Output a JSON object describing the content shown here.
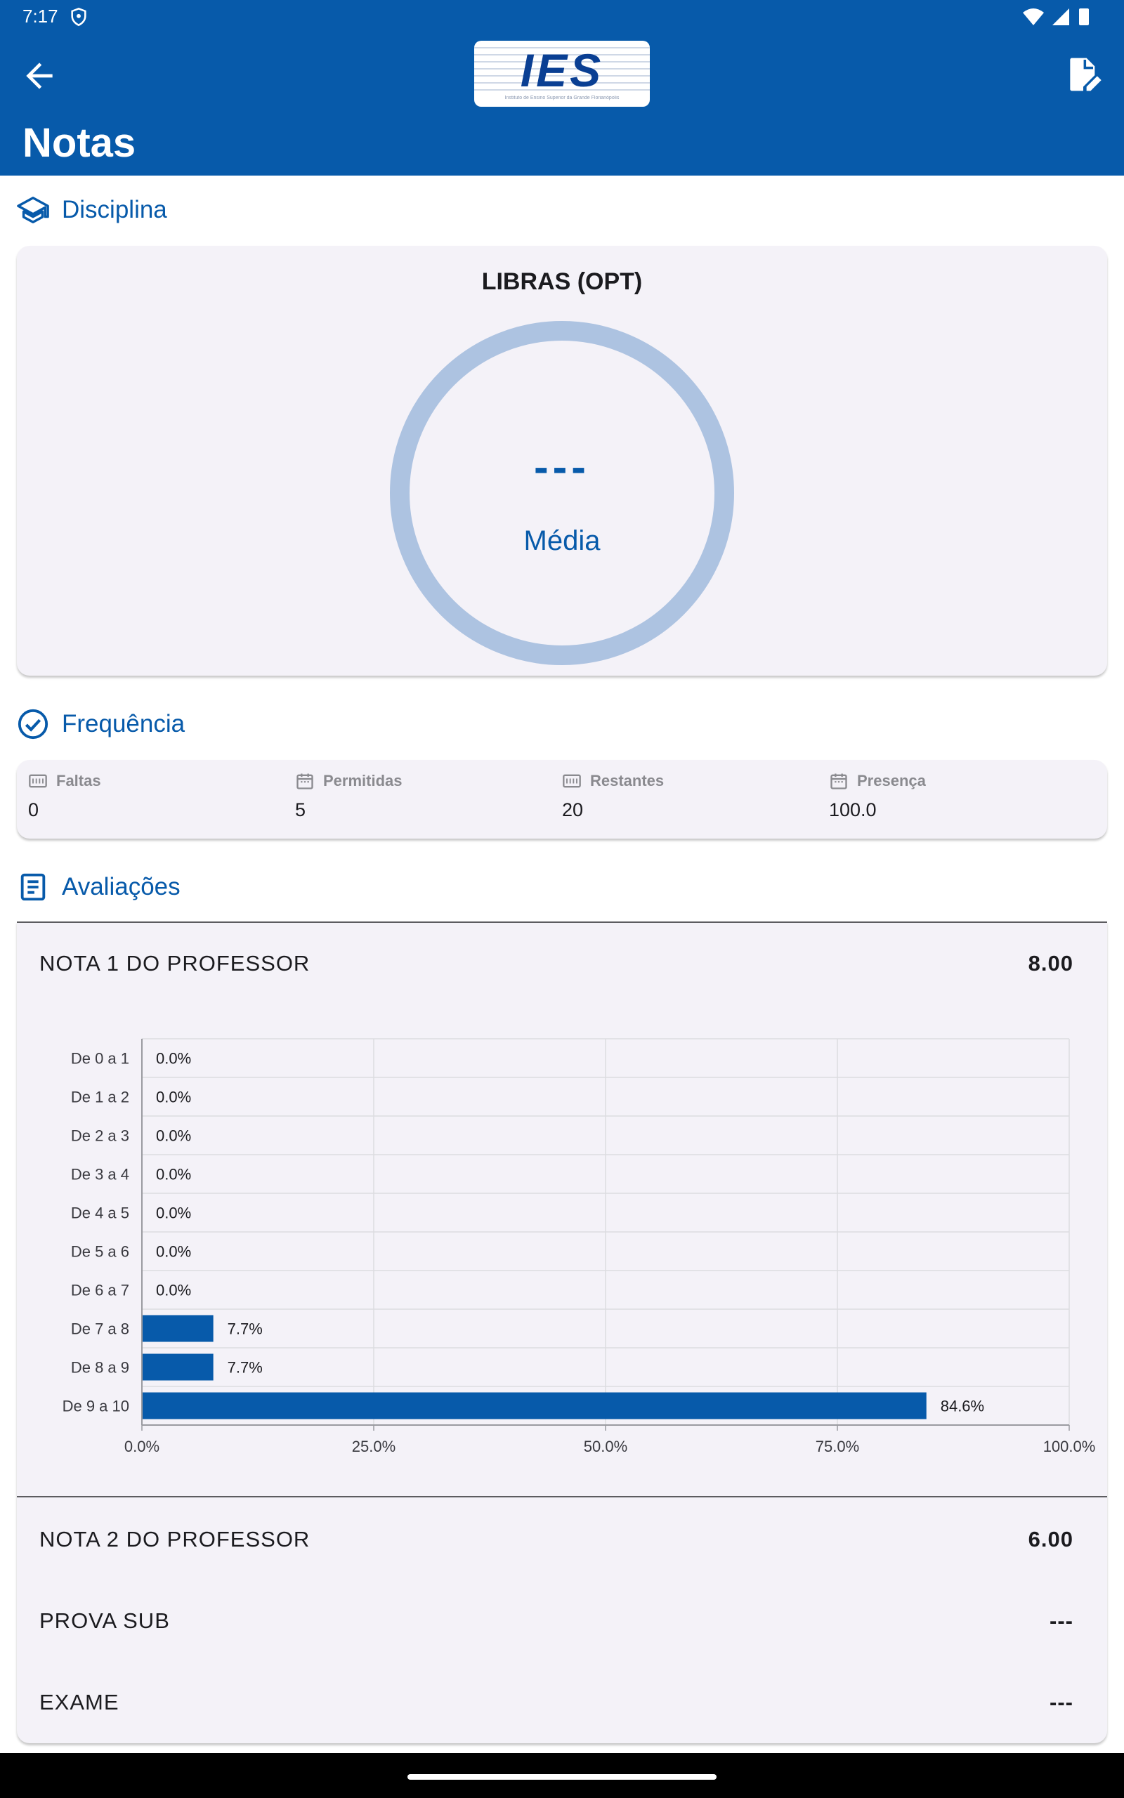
{
  "status": {
    "time": "7:17"
  },
  "header": {
    "title": "Notas",
    "logo_text": "IES",
    "logo_subtitle": "Instituto de Ensino Superior da Grande Florianópolis"
  },
  "sections": {
    "discipline": "Disciplina",
    "attendance": "Frequência",
    "assessments": "Avaliações"
  },
  "course": {
    "name": "LIBRAS (OPT)",
    "average_value": "---",
    "average_label": "Média"
  },
  "attendance": [
    {
      "label": "Faltas",
      "value": "0",
      "icon": "counter-icon"
    },
    {
      "label": "Permitidas",
      "value": "5",
      "icon": "calendar-icon"
    },
    {
      "label": "Restantes",
      "value": "20",
      "icon": "counter-icon"
    },
    {
      "label": "Presença",
      "value": "100.0",
      "icon": "calendar-icon"
    }
  ],
  "assessments": [
    {
      "name": "NOTA 1 DO PROFESSOR",
      "grade": "8.00"
    },
    {
      "name": "NOTA 2 DO PROFESSOR",
      "grade": "6.00"
    },
    {
      "name": "PROVA SUB",
      "grade": "---"
    },
    {
      "name": "EXAME",
      "grade": "---"
    }
  ],
  "chart_data": {
    "type": "bar",
    "orientation": "horizontal",
    "categories": [
      "De 0 a 1",
      "De 1 a 2",
      "De 2 a 3",
      "De 3 a 4",
      "De 4 a 5",
      "De 5 a 6",
      "De 6 a 7",
      "De 7 a 8",
      "De 8 a 9",
      "De 9 a 10"
    ],
    "values": [
      0.0,
      0.0,
      0.0,
      0.0,
      0.0,
      0.0,
      0.0,
      7.7,
      7.7,
      84.6
    ],
    "value_labels": [
      "0.0%",
      "0.0%",
      "0.0%",
      "0.0%",
      "0.0%",
      "0.0%",
      "0.0%",
      "7.7%",
      "7.7%",
      "84.6%"
    ],
    "x_ticks": [
      "0.0%",
      "25.0%",
      "50.0%",
      "75.0%",
      "100.0%"
    ],
    "xlim": [
      0,
      100
    ],
    "grid": true,
    "bar_color": "#075aaa"
  },
  "colors": {
    "primary": "#075aaa",
    "ring": "#adc3e1",
    "card": "#f4f2f8"
  }
}
